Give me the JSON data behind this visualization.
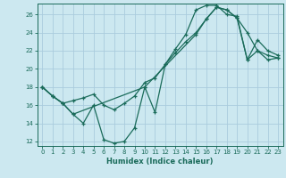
{
  "xlabel": "Humidex (Indice chaleur)",
  "bg_color": "#cce8f0",
  "grid_color": "#aaccdd",
  "line_color": "#1a6b5a",
  "xlim": [
    -0.5,
    23.5
  ],
  "ylim": [
    11.5,
    27.2
  ],
  "xticks": [
    0,
    1,
    2,
    3,
    4,
    5,
    6,
    7,
    8,
    9,
    10,
    11,
    12,
    13,
    14,
    15,
    16,
    17,
    18,
    19,
    20,
    21,
    22,
    23
  ],
  "yticks": [
    12,
    14,
    16,
    18,
    20,
    22,
    24,
    26
  ],
  "line1_x": [
    0,
    1,
    2,
    3,
    4,
    5,
    6,
    7,
    8,
    9,
    10,
    11,
    12,
    13,
    14,
    15,
    16,
    17,
    18,
    19,
    20,
    21,
    22,
    23
  ],
  "line1_y": [
    18,
    17,
    16.2,
    15.0,
    14.0,
    16.0,
    12.2,
    11.8,
    12.0,
    13.5,
    18.0,
    15.2,
    20.5,
    22.2,
    23.8,
    26.5,
    27.0,
    27.0,
    26.0,
    25.8,
    21.0,
    23.2,
    22.0,
    21.5
  ],
  "line2_x": [
    0,
    1,
    2,
    3,
    4,
    5,
    6,
    7,
    8,
    9,
    10,
    11,
    12,
    13,
    14,
    15,
    16,
    17,
    18,
    19,
    20,
    21,
    22,
    23
  ],
  "line2_y": [
    18,
    17,
    16.2,
    16.5,
    16.8,
    17.2,
    16.0,
    15.5,
    16.2,
    17.0,
    18.5,
    19.0,
    20.5,
    21.8,
    23.0,
    24.0,
    25.5,
    26.8,
    26.5,
    25.6,
    24.0,
    22.0,
    21.5,
    21.2
  ],
  "line3_x": [
    0,
    1,
    2,
    3,
    10,
    15,
    16,
    17,
    18,
    19,
    20,
    21,
    22,
    23
  ],
  "line3_y": [
    18,
    17,
    16.2,
    15.0,
    18.0,
    23.8,
    25.5,
    26.8,
    26.5,
    25.6,
    21.0,
    22.0,
    21.0,
    21.2
  ]
}
